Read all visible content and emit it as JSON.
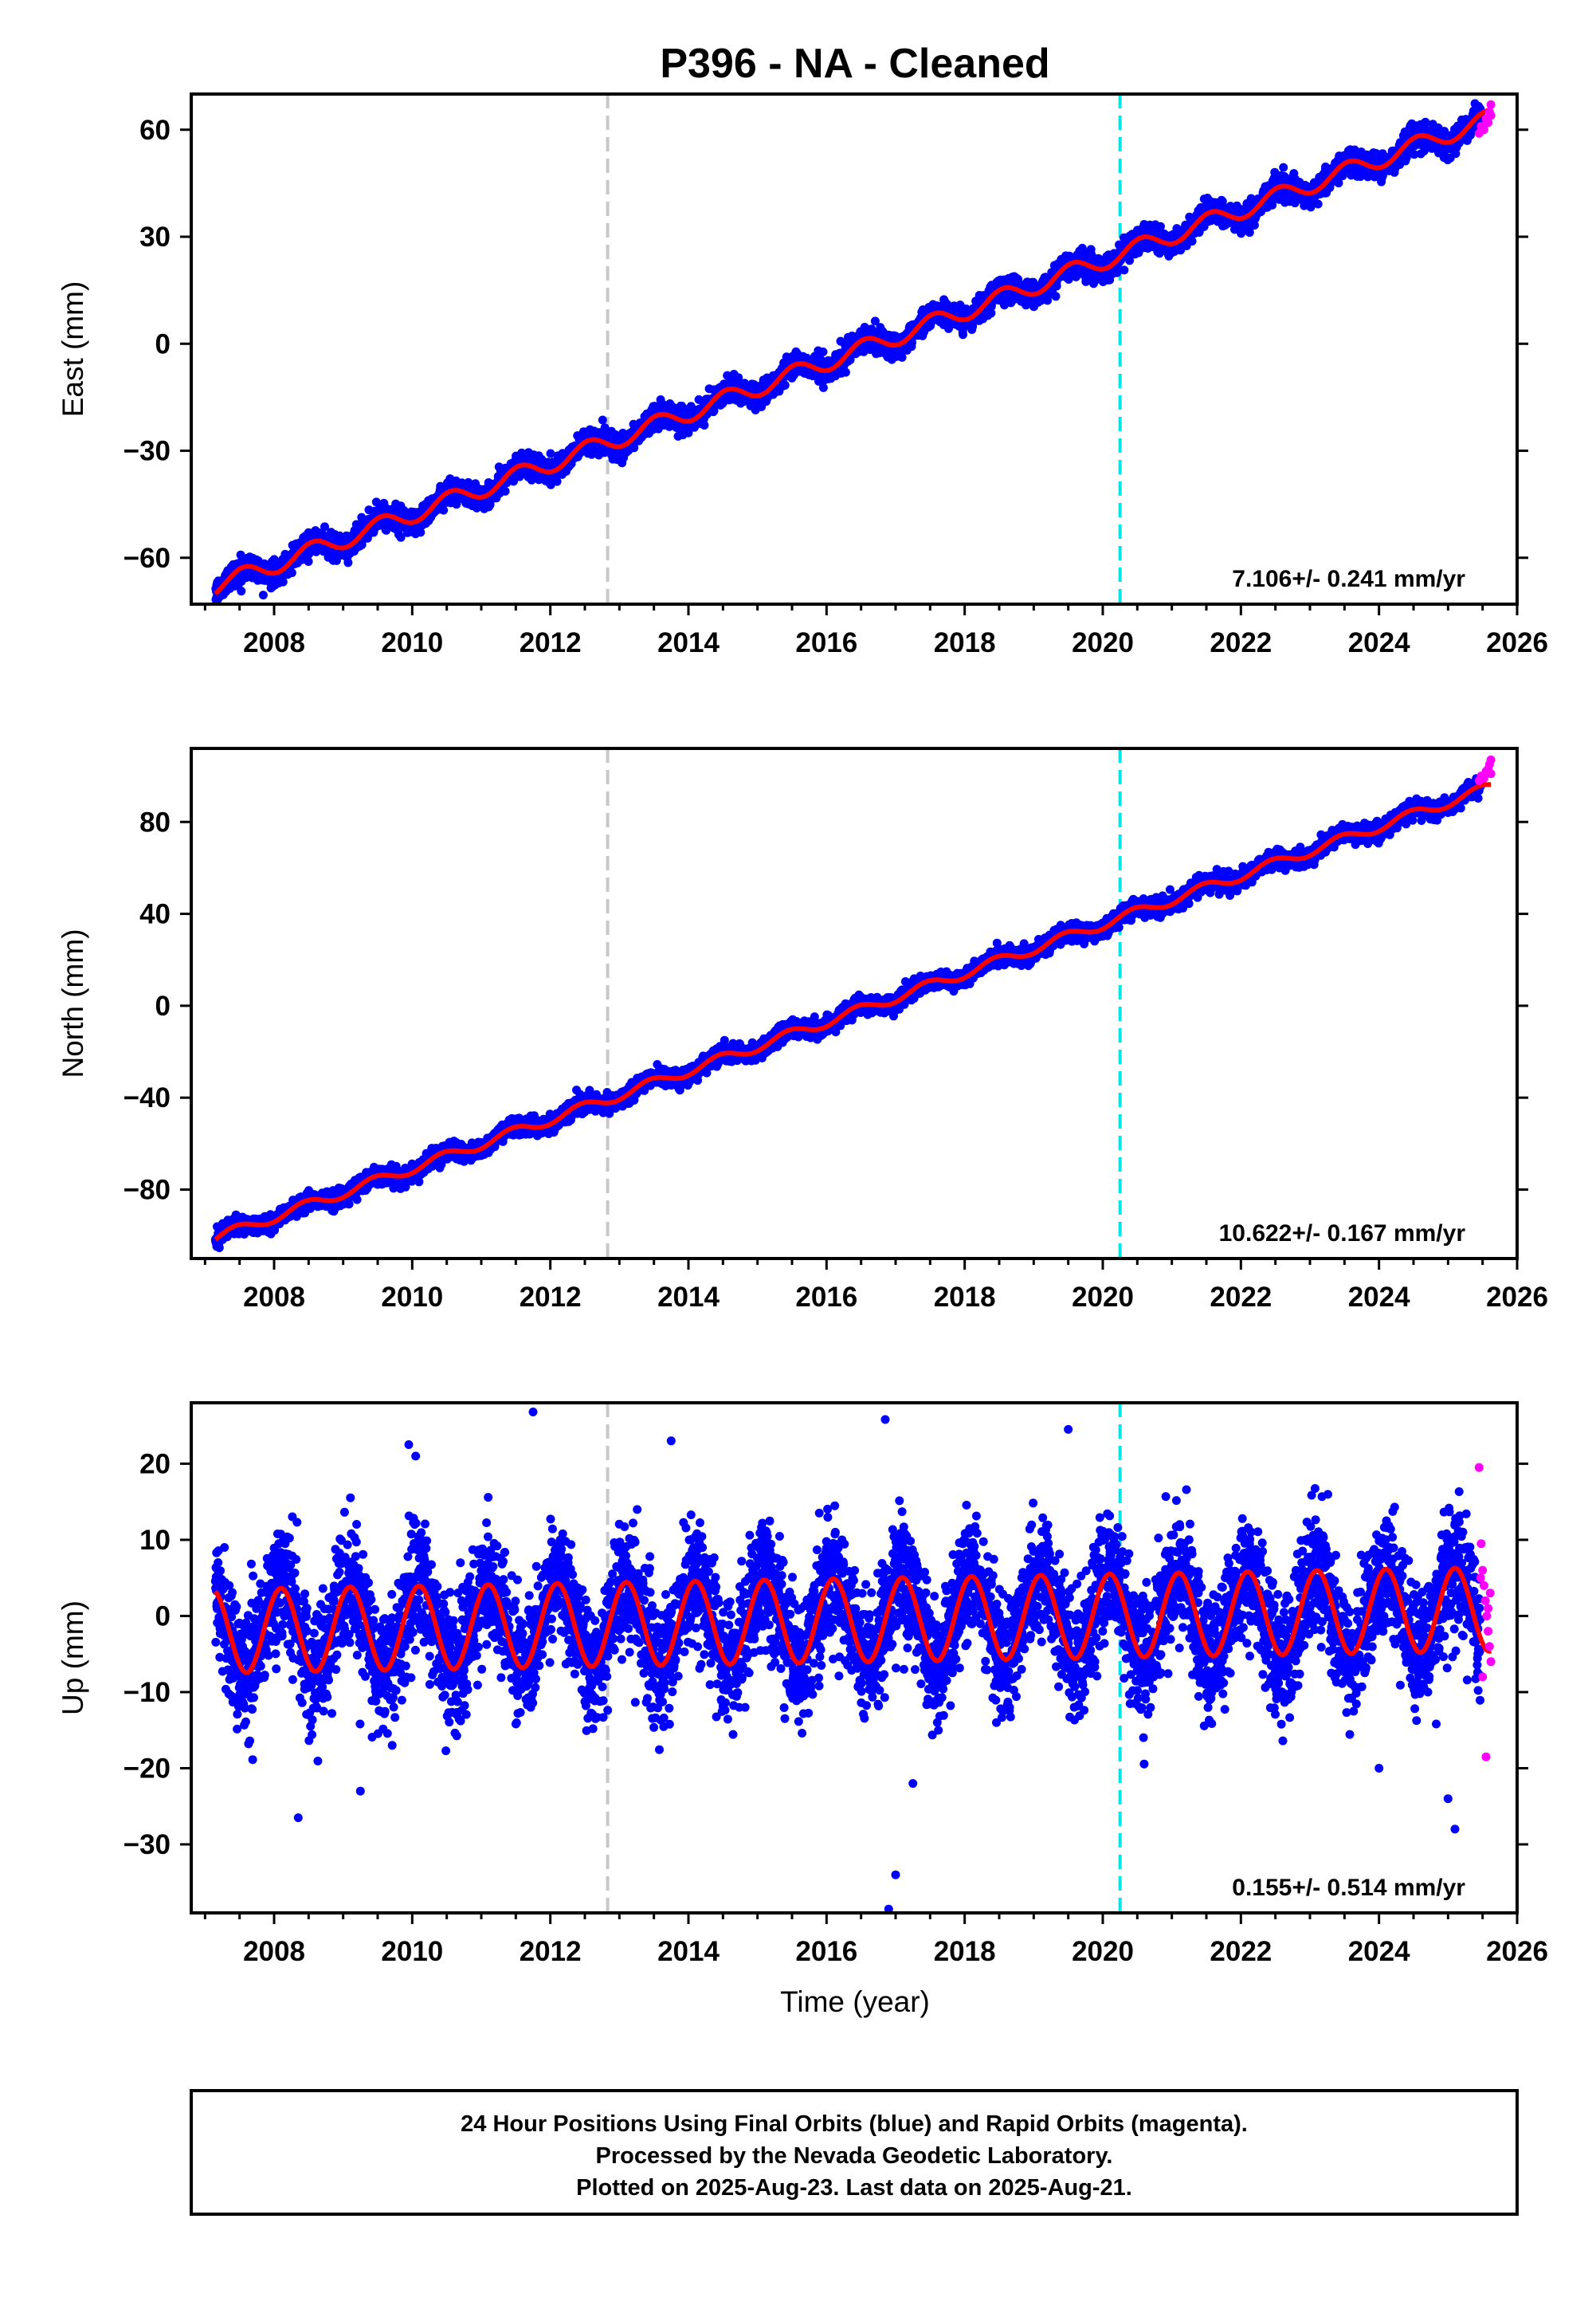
{
  "title": "P396  - NA - Cleaned",
  "footer": [
    "24 Hour Positions Using Final Orbits (blue) and Rapid Orbits (magenta).",
    "Processed by the Nevada Geodetic Laboratory.",
    "Plotted on 2025-Aug-23. Last data on 2025-Aug-21."
  ],
  "colors": {
    "final_orbits": "#0000ff",
    "rapid_orbits": "#ff00ff",
    "model_fit": "#ff0000",
    "event_line_1": "#c8c8c8",
    "event_line_2": "#00e5e5"
  },
  "chart_data": [
    {
      "type": "scatter",
      "component": "east",
      "ylabel": "East (mm)",
      "xlim": [
        2006.8,
        2026.0
      ],
      "ylim": [
        -73,
        70
      ],
      "xticks": [
        2008,
        2010,
        2012,
        2014,
        2016,
        2018,
        2020,
        2022,
        2024,
        2026
      ],
      "yticks": [
        -60,
        -30,
        0,
        30,
        60
      ],
      "grid": false,
      "rate_label": "7.106+/- 0.241 mm/yr",
      "event_lines": [
        2012.83,
        2020.25
      ],
      "model": {
        "start_year": 2007.15,
        "end_year": 2025.62,
        "start_value": -68,
        "rate_mm_per_yr": 7.106,
        "annual_amplitude": 2.5,
        "annual_phase": 0.3,
        "noise_sd": 1.6
      },
      "rapid_orbits": [
        [
          2025.45,
          59
        ],
        [
          2025.48,
          61
        ],
        [
          2025.52,
          60
        ],
        [
          2025.55,
          63
        ],
        [
          2025.58,
          62
        ],
        [
          2025.6,
          65
        ],
        [
          2025.62,
          67
        ],
        [
          2025.62,
          64
        ]
      ]
    },
    {
      "type": "scatter",
      "component": "north",
      "ylabel": "North (mm)",
      "xlim": [
        2006.8,
        2026.0
      ],
      "ylim": [
        -110,
        112
      ],
      "xticks": [
        2008,
        2010,
        2012,
        2014,
        2016,
        2018,
        2020,
        2022,
        2024,
        2026
      ],
      "yticks": [
        -80,
        -40,
        0,
        40,
        80
      ],
      "grid": false,
      "rate_label": "10.622+/- 0.167 mm/yr",
      "event_lines": [
        2012.83,
        2020.25
      ],
      "model": {
        "start_year": 2007.15,
        "end_year": 2025.62,
        "start_value": -101,
        "rate_mm_per_yr": 10.622,
        "annual_amplitude": 2.2,
        "annual_phase": 0.2,
        "noise_sd": 1.8
      },
      "rapid_orbits": [
        [
          2025.45,
          98
        ],
        [
          2025.48,
          100
        ],
        [
          2025.52,
          99
        ],
        [
          2025.55,
          102
        ],
        [
          2025.58,
          103
        ],
        [
          2025.6,
          105
        ],
        [
          2025.62,
          107
        ],
        [
          2025.62,
          101
        ]
      ]
    },
    {
      "type": "scatter",
      "component": "up",
      "ylabel": "Up (mm)",
      "xlim": [
        2006.8,
        2026.0
      ],
      "ylim": [
        -39,
        28
      ],
      "xticks": [
        2008,
        2010,
        2012,
        2014,
        2016,
        2018,
        2020,
        2022,
        2024,
        2026
      ],
      "yticks": [
        -30,
        -20,
        -10,
        0,
        10,
        20
      ],
      "grid": false,
      "rate_label": "0.155+/- 0.514 mm/yr",
      "event_lines": [
        2012.83,
        2020.25
      ],
      "model": {
        "start_year": 2007.15,
        "end_year": 2025.62,
        "start_value": -2,
        "rate_mm_per_yr": 0.155,
        "annual_amplitude": 5.5,
        "annual_phase": 0.85,
        "noise_sd": 4.0
      },
      "outliers": [
        [
          2008.35,
          -26.5
        ],
        [
          2009.25,
          -23
        ],
        [
          2009.95,
          22.5
        ],
        [
          2010.05,
          21
        ],
        [
          2011.75,
          26.8
        ],
        [
          2013.75,
          23
        ],
        [
          2016.85,
          25.8
        ],
        [
          2016.9,
          -38.5
        ],
        [
          2017.25,
          -22
        ],
        [
          2019.5,
          24.5
        ],
        [
          2024.0,
          -20
        ],
        [
          2025.1,
          -28
        ],
        [
          2025.0,
          -24
        ],
        [
          2017.0,
          -34
        ]
      ],
      "rapid_orbits": [
        [
          2025.45,
          19.5
        ],
        [
          2025.48,
          9.5
        ],
        [
          2025.5,
          6
        ],
        [
          2025.52,
          4
        ],
        [
          2025.54,
          2
        ],
        [
          2025.56,
          0
        ],
        [
          2025.58,
          -2
        ],
        [
          2025.6,
          -4
        ],
        [
          2025.62,
          -6
        ],
        [
          2025.47,
          5
        ],
        [
          2025.5,
          -8
        ],
        [
          2025.55,
          -18.5
        ],
        [
          2025.58,
          1
        ],
        [
          2025.61,
          3
        ]
      ]
    }
  ],
  "xlabel": "Time (year)"
}
